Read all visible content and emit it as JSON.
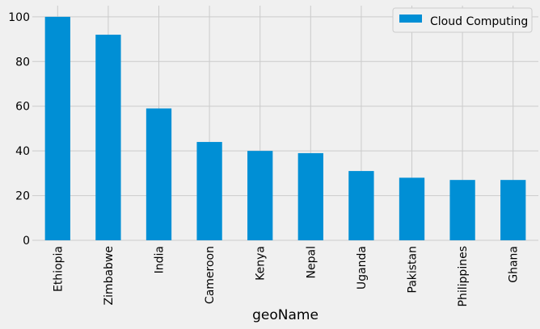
{
  "chart_data": {
    "type": "bar",
    "title": "",
    "xlabel": "geoName",
    "ylabel": "",
    "ylim": [
      0,
      105
    ],
    "yticks": [
      0,
      20,
      40,
      60,
      80,
      100
    ],
    "categories": [
      "Ethiopia",
      "Zimbabwe",
      "India",
      "Cameroon",
      "Kenya",
      "Nepal",
      "Uganda",
      "Pakistan",
      "Philippines",
      "Ghana"
    ],
    "series": [
      {
        "name": "Cloud Computing",
        "values": [
          100,
          92,
          59,
          44,
          40,
          39,
          31,
          28,
          27,
          27
        ],
        "color": "#008fd5"
      }
    ],
    "grid": true,
    "legend_position": "top-right"
  }
}
